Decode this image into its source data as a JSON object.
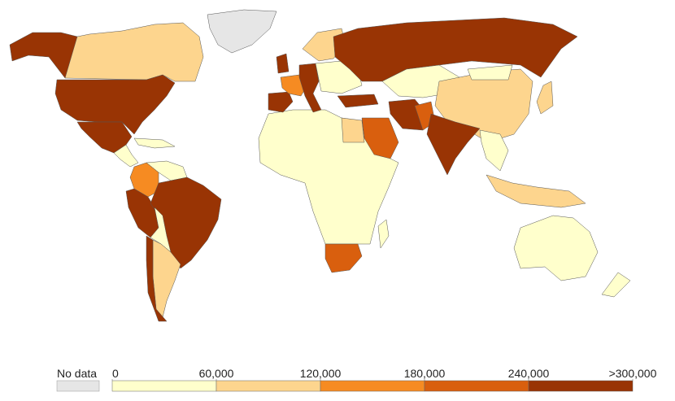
{
  "legend": {
    "no_data_label": "No data",
    "no_data_color": "#e6e6e6",
    "bins": [
      0,
      {
        "value": 60000,
        "label": "60,000"
      },
      {
        "value": 120000,
        "label": "120,000"
      },
      {
        "value": 180000,
        "label": "180,000"
      },
      {
        "value": 240000,
        "label": "240,000"
      },
      {
        "value": 300000,
        "label": ">300,000"
      }
    ],
    "colors": [
      "#ffffcc",
      "#fdd58e",
      "#f68b22",
      "#d95f0e",
      "#993404"
    ]
  }
}
